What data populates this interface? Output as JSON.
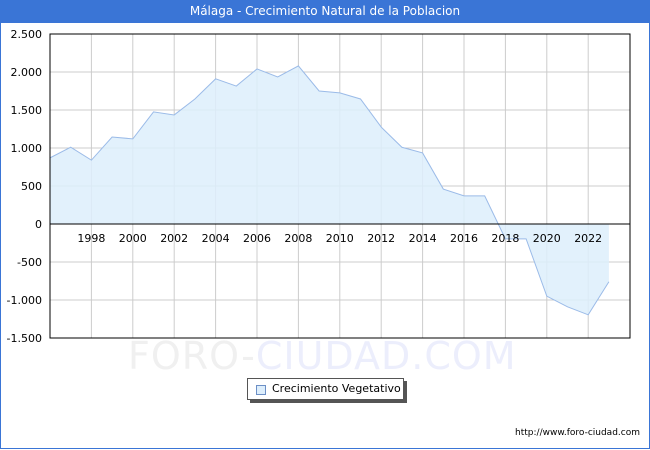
{
  "title": "Málaga - Crecimiento Natural de la Poblacion",
  "watermark": {
    "part1": "FORO-",
    "part2": "CIUDAD.COM"
  },
  "url": "http://www.foro-ciudad.com",
  "legend": {
    "label": "Crecimiento Vegetativo"
  },
  "colors": {
    "title_bg": "#3a75d6",
    "fill": "#ddeefc",
    "line": "#9bbbe8",
    "grid": "#cccccc"
  },
  "y_ticks": [
    "2.500",
    "2.000",
    "1.500",
    "1.000",
    "500",
    "0",
    "-500",
    "-1.000",
    "-1.500"
  ],
  "x_ticks": [
    "1998",
    "2000",
    "2002",
    "2004",
    "2006",
    "2008",
    "2010",
    "2012",
    "2014",
    "2016",
    "2018",
    "2020",
    "2022"
  ],
  "chart_data": {
    "type": "area",
    "title": "Málaga - Crecimiento Natural de la Poblacion",
    "xlabel": "",
    "ylabel": "",
    "ylim": [
      -1500,
      2500
    ],
    "xlim": [
      1996,
      2023
    ],
    "grid": true,
    "legend_position": "bottom",
    "x": [
      1996,
      1997,
      1998,
      1999,
      2000,
      2001,
      2002,
      2003,
      2004,
      2005,
      2006,
      2007,
      2008,
      2009,
      2010,
      2011,
      2012,
      2013,
      2014,
      2015,
      2016,
      2017,
      2018,
      2019,
      2020,
      2021,
      2022,
      2023
    ],
    "series": [
      {
        "name": "Crecimiento Vegetativo",
        "values": [
          870,
          1010,
          840,
          1145,
          1120,
          1475,
          1435,
          1645,
          1910,
          1815,
          2040,
          1935,
          2080,
          1750,
          1725,
          1645,
          1275,
          1010,
          935,
          460,
          370,
          370,
          -195,
          -195,
          -950,
          -1090,
          -1195,
          -760
        ]
      }
    ]
  }
}
